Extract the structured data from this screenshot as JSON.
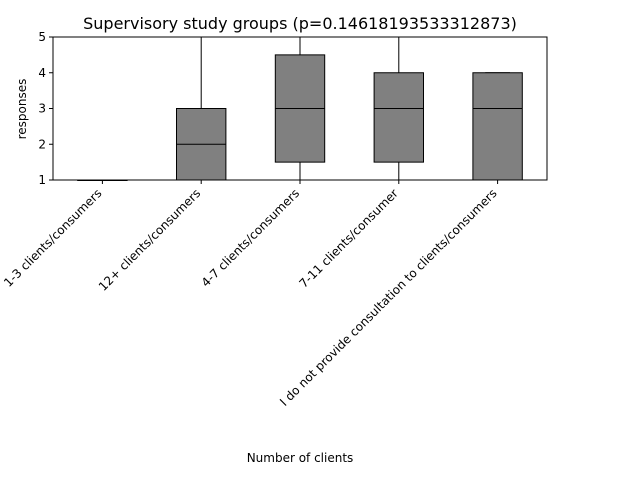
{
  "chart_data": {
    "type": "box",
    "title": "Supervisory study groups (p=0.14618193533312873)",
    "xlabel": "Number of clients",
    "ylabel": "responses",
    "ylim": [
      1,
      5
    ],
    "yticks": [
      1,
      2,
      3,
      4,
      5
    ],
    "ytick_labels": [
      "1",
      "2",
      "3",
      "4",
      "5"
    ],
    "grid": false,
    "box_color": "#808080",
    "categories": [
      "1-3 clients/consumers",
      "12+ clients/consumers",
      "4-7 clients/consumers",
      "7-11 clients/consumer",
      "I do not provide consultation to clients/consumers"
    ],
    "boxes": [
      {
        "whisker_low": 1,
        "q1": 1,
        "median": 1,
        "q3": 1,
        "whisker_high": 1
      },
      {
        "whisker_low": 1,
        "q1": 1,
        "median": 2,
        "q3": 3,
        "whisker_high": 5
      },
      {
        "whisker_low": 1,
        "q1": 1.5,
        "median": 3,
        "q3": 4.5,
        "whisker_high": 5
      },
      {
        "whisker_low": 1,
        "q1": 1.5,
        "median": 3,
        "q3": 4,
        "whisker_high": 5
      },
      {
        "whisker_low": 1,
        "q1": 1,
        "median": 3,
        "q3": 4,
        "whisker_high": 4
      }
    ]
  }
}
